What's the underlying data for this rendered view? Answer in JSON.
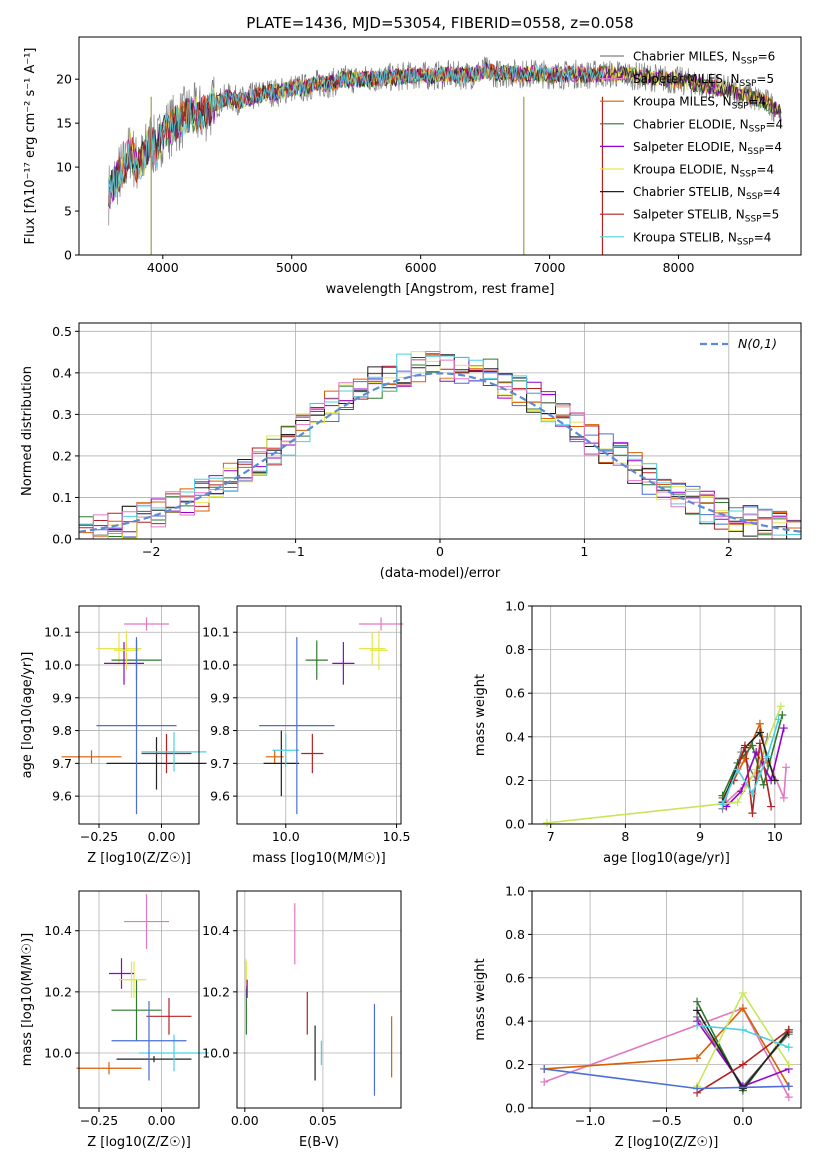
{
  "title": "PLATE=1436, MJD=53054, FIBERID=0558, z=0.058",
  "colors": [
    "#808080",
    "#e377c2",
    "#d95f02",
    "#2f7a2f",
    "#9400d3",
    "#e6e64c",
    "#222222",
    "#b22222",
    "#4dd0e1"
  ],
  "spectrum_colors": [
    "#808080",
    "#e377c2",
    "#d95f02",
    "#2f7a2f",
    "#9400d3",
    "#e6e64c",
    "#222222",
    "#b22222",
    "#4dd0e1"
  ],
  "chart_data": [
    {
      "type": "line",
      "title": "PLATE=1436, MJD=53054, FIBERID=0558, z=0.058",
      "xlabel": "wavelength [Angstrom, rest frame]",
      "ylabel": "Flux [f",
      "ylabel_full": "Flux [fλ10⁻¹⁷ erg cm⁻² s⁻¹ A⁻¹]",
      "xlim": [
        3350,
        8950
      ],
      "ylim": [
        0,
        24.8
      ],
      "xticks": [
        4000,
        5000,
        6000,
        7000,
        8000
      ],
      "yticks": [
        0,
        5,
        10,
        15,
        20
      ],
      "grid": false,
      "legend_position": "top-right",
      "legend": [
        "Chabrier MILES, NSSP=6",
        "Salpeter MILES, NSSP=5",
        "Kroupa MILES, NSSP=4",
        "Chabrier ELODIE, NSSP=4",
        "Salpeter ELODIE, NSSP=4",
        "Kroupa ELODIE, NSSP=4",
        "Chabrier STELIB, NSSP=4",
        "Salpeter STELIB, NSSP=5",
        "Kroupa STELIB, NSSP=4"
      ],
      "legend_parts": [
        {
          "pre": "Chabrier MILES, N",
          "sub": "SSP",
          "post": "=6"
        },
        {
          "pre": "Salpeter MILES, N",
          "sub": "SSP",
          "post": "=5"
        },
        {
          "pre": "Kroupa MILES, N",
          "sub": "SSP",
          "post": "=4"
        },
        {
          "pre": "Chabrier ELODIE, N",
          "sub": "SSP",
          "post": "=4"
        },
        {
          "pre": "Salpeter ELODIE, N",
          "sub": "SSP",
          "post": "=4"
        },
        {
          "pre": "Kroupa ELODIE, N",
          "sub": "SSP",
          "post": "=4"
        },
        {
          "pre": "Chabrier STELIB, N",
          "sub": "SSP",
          "post": "=4"
        },
        {
          "pre": "Salpeter STELIB, N",
          "sub": "SSP",
          "post": "=5"
        },
        {
          "pre": "Kroupa STELIB, N",
          "sub": "SSP",
          "post": "=4"
        }
      ],
      "envelope_x": [
        3580,
        3650,
        3700,
        3750,
        3800,
        3850,
        3900,
        3950,
        4000,
        4100,
        4200,
        4300,
        4400,
        4500,
        4600,
        4700,
        4800,
        4900,
        5000,
        5100,
        5200,
        5300,
        5400,
        5500,
        5600,
        5700,
        5800,
        5900,
        6000,
        6100,
        6200,
        6300,
        6400,
        6500,
        6600,
        6700,
        6800,
        6900,
        7000,
        7100,
        7200,
        7300,
        7400,
        7500,
        7600,
        7700,
        7800,
        7900,
        8000,
        8100,
        8200,
        8300,
        8400,
        8500,
        8600,
        8700,
        8800
      ],
      "envelope_y": [
        7,
        9,
        10,
        12,
        10,
        11,
        13,
        12,
        14,
        15,
        16,
        16,
        17,
        18,
        17.5,
        18,
        18.5,
        18.5,
        19,
        19,
        19.5,
        19.5,
        20,
        20,
        20,
        20.2,
        20.2,
        20.4,
        20.4,
        20.4,
        20.5,
        20.4,
        20.5,
        21,
        20.6,
        20.7,
        20.6,
        20.7,
        20.5,
        20.5,
        20.6,
        20.5,
        20.6,
        20.6,
        20.5,
        20.3,
        20.2,
        20,
        19.8,
        19.6,
        19.3,
        19,
        18.7,
        18.3,
        17.8,
        17.2,
        16
      ]
    },
    {
      "type": "histogram",
      "xlabel": "(data-model)/error",
      "ylabel": "Normed distribution",
      "xlim": [
        -2.5,
        2.5
      ],
      "ylim": [
        0,
        0.52
      ],
      "xticks": [
        -2,
        -1,
        0,
        1,
        2
      ],
      "yticks": [
        0.0,
        0.1,
        0.2,
        0.3,
        0.4,
        0.5
      ],
      "grid": true,
      "legend_position": "top-right",
      "legend": [
        "N(0,1)"
      ],
      "reference_curve": "standard normal",
      "bin_width": 0.1,
      "bin_start": -2.5
    },
    {
      "type": "scatter",
      "xlabel": "Z [log10(Z/Z☉)]",
      "ylabel": "age [log10(age/yr)]",
      "xlim": [
        -0.33,
        0.15
      ],
      "ylim": [
        9.515,
        10.18
      ],
      "xticks": [
        -0.25,
        0.0
      ],
      "yticks": [
        9.6,
        9.7,
        9.8,
        9.9,
        10.0,
        10.1
      ],
      "grid": true,
      "points": [
        {
          "x": -0.17,
          "xerr": 0.09,
          "y": 10.05,
          "yerr": 0.05
        },
        {
          "x": -0.06,
          "xerr": 0.09,
          "y": 10.125,
          "yerr": 0.02
        },
        {
          "x": -0.28,
          "xerr": 0.12,
          "y": 9.72,
          "yerr": 0.02
        },
        {
          "x": -0.1,
          "xerr": 0.1,
          "y": 10.015,
          "yerr": 0.06
        },
        {
          "x": -0.15,
          "xerr": 0.08,
          "y": 10.005,
          "yerr": 0.065
        },
        {
          "x": -0.14,
          "xerr": 0.05,
          "y": 10.045,
          "yerr": 0.06
        },
        {
          "x": -0.02,
          "xerr": 0.2,
          "y": 9.7,
          "yerr": 0.08
        },
        {
          "x": 0.02,
          "xerr": 0.1,
          "y": 9.73,
          "yerr": 0.06
        },
        {
          "x": 0.05,
          "xerr": 0.13,
          "y": 9.735,
          "yerr": 0.06
        },
        {
          "x": -0.1,
          "xerr": 0.16,
          "y": 9.815,
          "yerr": 0.27
        }
      ]
    },
    {
      "type": "scatter",
      "xlabel": "mass [log10(M/M☉)]",
      "xlim": [
        9.78,
        10.52
      ],
      "ylim": [
        9.515,
        10.18
      ],
      "xticks": [
        10.0,
        10.5
      ],
      "yticks": [
        9.6,
        9.7,
        9.8,
        9.9,
        10.0,
        10.1
      ],
      "grid": true,
      "points": [
        {
          "x": 10.39,
          "xerr": 0.06,
          "y": 10.05,
          "yerr": 0.05
        },
        {
          "x": 10.43,
          "xerr": 0.1,
          "y": 10.125,
          "yerr": 0.02
        },
        {
          "x": 9.95,
          "xerr": 0.04,
          "y": 9.72,
          "yerr": 0.02
        },
        {
          "x": 10.14,
          "xerr": 0.05,
          "y": 10.015,
          "yerr": 0.06
        },
        {
          "x": 10.26,
          "xerr": 0.05,
          "y": 10.005,
          "yerr": 0.065
        },
        {
          "x": 10.42,
          "xerr": 0.04,
          "y": 10.045,
          "yerr": 0.06
        },
        {
          "x": 9.98,
          "xerr": 0.08,
          "y": 9.7,
          "yerr": 0.1
        },
        {
          "x": 10.12,
          "xerr": 0.05,
          "y": 9.73,
          "yerr": 0.06
        },
        {
          "x": 10.0,
          "xerr": 0.06,
          "y": 9.74,
          "yerr": 0.05
        },
        {
          "x": 10.05,
          "xerr": 0.17,
          "y": 9.815,
          "yerr": 0.27
        }
      ]
    },
    {
      "type": "line",
      "xlabel": "age [log10(age/yr)]",
      "ylabel": "mass weight",
      "xlim": [
        6.75,
        10.35
      ],
      "ylim": [
        0,
        1.0
      ],
      "xticks": [
        7,
        8,
        9,
        10
      ],
      "yticks": [
        0.0,
        0.2,
        0.4,
        0.6,
        0.8,
        1.0
      ],
      "grid": true,
      "series": [
        {
          "x": [
            9.3,
            9.55,
            9.75,
            9.9
          ],
          "y": [
            0.07,
            0.33,
            0.2,
            0.4
          ]
        },
        {
          "x": [
            9.35,
            9.6,
            9.9,
            10.12,
            10.15
          ],
          "y": [
            0.1,
            0.18,
            0.3,
            0.12,
            0.26
          ]
        },
        {
          "x": [
            9.3,
            9.45,
            9.6,
            9.8,
            9.9
          ],
          "y": [
            0.12,
            0.2,
            0.3,
            0.46,
            0.28
          ]
        },
        {
          "x": [
            9.3,
            9.5,
            9.7,
            9.85,
            10.1
          ],
          "y": [
            0.13,
            0.28,
            0.36,
            0.18,
            0.5
          ]
        },
        {
          "x": [
            9.35,
            9.55,
            9.75,
            9.95,
            10.12
          ],
          "y": [
            0.08,
            0.15,
            0.33,
            0.2,
            0.44
          ]
        },
        {
          "x": [
            6.95,
            9.5,
            9.75,
            10.08
          ],
          "y": [
            0.005,
            0.1,
            0.25,
            0.54
          ]
        },
        {
          "x": [
            9.3,
            9.6,
            9.8,
            10.0
          ],
          "y": [
            0.1,
            0.35,
            0.42,
            0.2
          ]
        },
        {
          "x": [
            9.45,
            9.6,
            9.7,
            9.8,
            9.95
          ],
          "y": [
            0.2,
            0.36,
            0.05,
            0.37,
            0.08
          ]
        },
        {
          "x": [
            9.3,
            9.5,
            9.7,
            9.9,
            10.05
          ],
          "y": [
            0.09,
            0.25,
            0.14,
            0.31,
            0.48
          ]
        }
      ]
    },
    {
      "type": "scatter",
      "xlabel": "Z [log10(Z/Z☉)]",
      "ylabel": "mass [log10(M/M☉)]",
      "xlim": [
        -0.33,
        0.15
      ],
      "ylim": [
        9.82,
        10.53
      ],
      "xticks": [
        -0.25,
        0.0
      ],
      "yticks": [
        10.0,
        10.2,
        10.4
      ],
      "grid": true,
      "points": [
        {
          "x": -0.11,
          "xerr": 0.05,
          "y": 10.24,
          "yerr": 0.06
        },
        {
          "x": -0.06,
          "xerr": 0.09,
          "y": 10.43,
          "yerr": 0.09
        },
        {
          "x": -0.21,
          "xerr": 0.13,
          "y": 9.95,
          "yerr": 0.02
        },
        {
          "x": -0.1,
          "xerr": 0.1,
          "y": 10.14,
          "yerr": 0.1
        },
        {
          "x": -0.16,
          "xerr": 0.05,
          "y": 10.26,
          "yerr": 0.05
        },
        {
          "x": -0.12,
          "xerr": 0.05,
          "y": 10.24,
          "yerr": 0.06
        },
        {
          "x": -0.03,
          "xerr": 0.15,
          "y": 9.98,
          "yerr": 0.01
        },
        {
          "x": 0.03,
          "xerr": 0.09,
          "y": 10.12,
          "yerr": 0.06
        },
        {
          "x": 0.05,
          "xerr": 0.14,
          "y": 10.0,
          "yerr": 0.06
        },
        {
          "x": -0.05,
          "xerr": 0.15,
          "y": 10.04,
          "yerr": 0.13
        }
      ]
    },
    {
      "type": "scatter",
      "xlabel": "E(B-V)",
      "xlim": [
        -0.005,
        0.1
      ],
      "ylim": [
        9.82,
        10.53
      ],
      "xticks": [
        0.0,
        0.05
      ],
      "yticks": [
        10.0,
        10.2,
        10.4
      ],
      "grid": true,
      "points": [
        {
          "x": 0.001,
          "y": 10.24,
          "yerr": 0.06
        },
        {
          "x": 0.032,
          "y": 10.39,
          "yerr": 0.1
        },
        {
          "x": 0.094,
          "y": 10.02,
          "yerr": 0.1
        },
        {
          "x": 0.001,
          "y": 10.14,
          "yerr": 0.08
        },
        {
          "x": 0.0015,
          "y": 10.21,
          "yerr": 0.03
        },
        {
          "x": 0.0005,
          "y": 10.26,
          "yerr": 0.05
        },
        {
          "x": 0.045,
          "y": 10.0,
          "yerr": 0.09
        },
        {
          "x": 0.04,
          "y": 10.13,
          "yerr": 0.07
        },
        {
          "x": 0.049,
          "y": 10.0,
          "yerr": 0.04
        },
        {
          "x": 0.083,
          "y": 10.01,
          "yerr": 0.15
        }
      ]
    },
    {
      "type": "line",
      "xlabel": "Z [log10(Z/Z☉)]",
      "ylabel": "mass weight",
      "xlim": [
        -1.38,
        0.38
      ],
      "ylim": [
        0,
        1.0
      ],
      "xticks": [
        -1.0,
        -0.5,
        0.0
      ],
      "yticks": [
        0.0,
        0.2,
        0.4,
        0.6,
        0.8,
        1.0
      ],
      "grid": true,
      "series": [
        {
          "x": [
            -0.3,
            0.0,
            0.3
          ],
          "y": [
            0.42,
            0.1,
            0.34
          ]
        },
        {
          "x": [
            -1.3,
            0.0,
            0.3
          ],
          "y": [
            0.12,
            0.46,
            0.05
          ]
        },
        {
          "x": [
            -1.3,
            -0.3,
            0.0,
            0.3
          ],
          "y": [
            0.18,
            0.23,
            0.46,
            0.1
          ]
        },
        {
          "x": [
            -0.3,
            0.0,
            0.3
          ],
          "y": [
            0.49,
            0.08,
            0.36
          ]
        },
        {
          "x": [
            -0.3,
            0.0,
            0.3
          ],
          "y": [
            0.4,
            0.1,
            0.18
          ]
        },
        {
          "x": [
            -0.3,
            0.0,
            0.3
          ],
          "y": [
            0.1,
            0.53,
            0.2
          ]
        },
        {
          "x": [
            -0.3,
            0.0,
            0.3
          ],
          "y": [
            0.45,
            0.09,
            0.35
          ]
        },
        {
          "x": [
            -0.3,
            0.0,
            0.3
          ],
          "y": [
            0.07,
            0.2,
            0.36
          ]
        },
        {
          "x": [
            -0.3,
            0.0,
            0.3
          ],
          "y": [
            0.38,
            0.36,
            0.28
          ]
        },
        {
          "x": [
            -1.3,
            -0.3,
            0.3
          ],
          "y": [
            0.18,
            0.09,
            0.1
          ]
        }
      ]
    }
  ],
  "errorbar_colors": [
    "#e6e64c",
    "#e377c2",
    "#d95f02",
    "#2f7a2f",
    "#9400d3",
    "#e6e64c",
    "#222222",
    "#b22222",
    "#4dd0e1",
    "#4a6fd6"
  ],
  "line_colors": [
    "#808080",
    "#e377c2",
    "#d95f02",
    "#2f7a2f",
    "#9400d3",
    "#c8e65a",
    "#222222",
    "#b22222",
    "#4dd0e1",
    "#4a6fd6"
  ],
  "hist_colors": [
    "#4a6fd6",
    "#d95f02",
    "#2f7a2f",
    "#9400d3",
    "#b22222",
    "#e6e64c",
    "#222222",
    "#4dd0e1",
    "#e377c2"
  ],
  "normal_color": "#5b8bd6"
}
